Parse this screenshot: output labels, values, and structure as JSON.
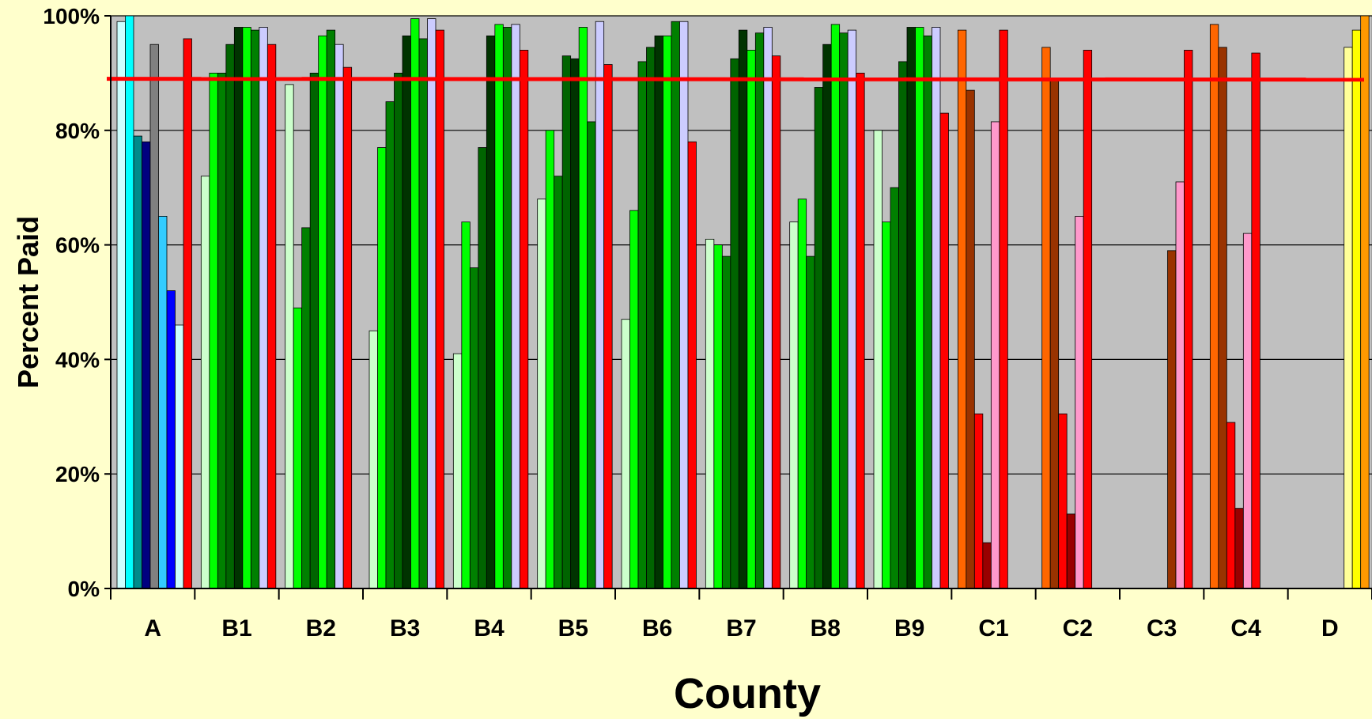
{
  "chart_data": {
    "type": "bar",
    "xlabel": "County",
    "ylabel": "Percent Paid",
    "ylim": [
      0,
      100
    ],
    "yticks": [
      "0%",
      "20%",
      "40%",
      "60%",
      "80%",
      "100%"
    ],
    "ytick_values": [
      0,
      20,
      40,
      60,
      80,
      100
    ],
    "grid": true,
    "plot_background": "#c0c0c0",
    "page_background": "#ffffcc",
    "reference_line": {
      "value": 89,
      "color": "#ff0000"
    },
    "categories": [
      "A",
      "B1",
      "B2",
      "B3",
      "B4",
      "B5",
      "B6",
      "B7",
      "B8",
      "B9",
      "C1",
      "C2",
      "C3",
      "C4",
      "D"
    ],
    "groups": [
      {
        "category": "A",
        "bars": [
          {
            "value": 99,
            "color": "#ccffff"
          },
          {
            "value": 100,
            "color": "#00ffff"
          },
          {
            "value": 79,
            "color": "#008b8b"
          },
          {
            "value": 78,
            "color": "#000080"
          },
          {
            "value": 95,
            "color": "#808080"
          },
          {
            "value": 65,
            "color": "#33ccff"
          },
          {
            "value": 52,
            "color": "#0000ff"
          },
          {
            "value": 46,
            "color": "#ccffff"
          },
          {
            "value": 96,
            "color": "#ff0000"
          }
        ]
      },
      {
        "category": "B1",
        "bars": [
          {
            "value": 72,
            "color": "#ccffcc"
          },
          {
            "value": 90,
            "color": "#00ff00"
          },
          {
            "value": 90,
            "color": "#008000"
          },
          {
            "value": 95,
            "color": "#006400"
          },
          {
            "value": 98,
            "color": "#003300"
          },
          {
            "value": 98,
            "color": "#00ff00"
          },
          {
            "value": 97.5,
            "color": "#008000"
          },
          {
            "value": 98,
            "color": "#ccccff"
          },
          {
            "value": 95,
            "color": "#ff0000"
          }
        ]
      },
      {
        "category": "B2",
        "bars": [
          {
            "value": 88,
            "color": "#ccffcc"
          },
          {
            "value": 49,
            "color": "#00ff00"
          },
          {
            "value": 63,
            "color": "#008000"
          },
          {
            "value": 90,
            "color": "#006400"
          },
          {
            "value": 96.5,
            "color": "#00ff00"
          },
          {
            "value": 97.5,
            "color": "#008000"
          },
          {
            "value": 95,
            "color": "#ccccff"
          },
          {
            "value": 91,
            "color": "#ff0000"
          }
        ]
      },
      {
        "category": "B3",
        "bars": [
          {
            "value": 45,
            "color": "#ccffcc"
          },
          {
            "value": 77,
            "color": "#00ff00"
          },
          {
            "value": 85,
            "color": "#008000"
          },
          {
            "value": 90,
            "color": "#006400"
          },
          {
            "value": 96.5,
            "color": "#003300"
          },
          {
            "value": 99.5,
            "color": "#00ff00"
          },
          {
            "value": 96,
            "color": "#008000"
          },
          {
            "value": 99.5,
            "color": "#ccccff"
          },
          {
            "value": 97.5,
            "color": "#ff0000"
          }
        ]
      },
      {
        "category": "B4",
        "bars": [
          {
            "value": 41,
            "color": "#ccffcc"
          },
          {
            "value": 64,
            "color": "#00ff00"
          },
          {
            "value": 56,
            "color": "#008000"
          },
          {
            "value": 77,
            "color": "#006400"
          },
          {
            "value": 96.5,
            "color": "#003300"
          },
          {
            "value": 98.5,
            "color": "#00ff00"
          },
          {
            "value": 98,
            "color": "#008000"
          },
          {
            "value": 98.5,
            "color": "#ccccff"
          },
          {
            "value": 94,
            "color": "#ff0000"
          }
        ]
      },
      {
        "category": "B5",
        "bars": [
          {
            "value": 68,
            "color": "#ccffcc"
          },
          {
            "value": 80,
            "color": "#00ff00"
          },
          {
            "value": 72,
            "color": "#008000"
          },
          {
            "value": 93,
            "color": "#006400"
          },
          {
            "value": 92.5,
            "color": "#003300"
          },
          {
            "value": 98,
            "color": "#00ff00"
          },
          {
            "value": 81.5,
            "color": "#008000"
          },
          {
            "value": 99,
            "color": "#ccccff"
          },
          {
            "value": 91.5,
            "color": "#ff0000"
          }
        ]
      },
      {
        "category": "B6",
        "bars": [
          {
            "value": 47,
            "color": "#ccffcc"
          },
          {
            "value": 66,
            "color": "#00ff00"
          },
          {
            "value": 92,
            "color": "#008000"
          },
          {
            "value": 94.5,
            "color": "#006400"
          },
          {
            "value": 96.5,
            "color": "#003300"
          },
          {
            "value": 96.5,
            "color": "#00ff00"
          },
          {
            "value": 99,
            "color": "#008000"
          },
          {
            "value": 99,
            "color": "#ccccff"
          },
          {
            "value": 78,
            "color": "#ff0000"
          }
        ]
      },
      {
        "category": "B7",
        "bars": [
          {
            "value": 61,
            "color": "#ccffcc"
          },
          {
            "value": 60,
            "color": "#00ff00"
          },
          {
            "value": 58,
            "color": "#008000"
          },
          {
            "value": 92.5,
            "color": "#006400"
          },
          {
            "value": 97.5,
            "color": "#003300"
          },
          {
            "value": 94,
            "color": "#00ff00"
          },
          {
            "value": 97,
            "color": "#008000"
          },
          {
            "value": 98,
            "color": "#ccccff"
          },
          {
            "value": 93,
            "color": "#ff0000"
          }
        ]
      },
      {
        "category": "B8",
        "bars": [
          {
            "value": 64,
            "color": "#ccffcc"
          },
          {
            "value": 68,
            "color": "#00ff00"
          },
          {
            "value": 58,
            "color": "#008000"
          },
          {
            "value": 87.5,
            "color": "#006400"
          },
          {
            "value": 95,
            "color": "#003300"
          },
          {
            "value": 98.5,
            "color": "#00ff00"
          },
          {
            "value": 97,
            "color": "#008000"
          },
          {
            "value": 97.5,
            "color": "#ccccff"
          },
          {
            "value": 90,
            "color": "#ff0000"
          }
        ]
      },
      {
        "category": "B9",
        "bars": [
          {
            "value": 80,
            "color": "#ccffcc"
          },
          {
            "value": 64,
            "color": "#00ff00"
          },
          {
            "value": 70,
            "color": "#008000"
          },
          {
            "value": 92,
            "color": "#006400"
          },
          {
            "value": 98,
            "color": "#003300"
          },
          {
            "value": 98,
            "color": "#00ff00"
          },
          {
            "value": 96.5,
            "color": "#008000"
          },
          {
            "value": 98,
            "color": "#ccccff"
          },
          {
            "value": 83,
            "color": "#ff0000"
          }
        ]
      },
      {
        "category": "C1",
        "bars": [
          {
            "value": 97.5,
            "color": "#ff6600"
          },
          {
            "value": 87,
            "color": "#993300"
          },
          {
            "value": 30.5,
            "color": "#ff0000"
          },
          {
            "value": 8,
            "color": "#990000"
          },
          {
            "value": 81.5,
            "color": "#ff99cc"
          },
          {
            "value": 97.5,
            "color": "#ff0000"
          }
        ]
      },
      {
        "category": "C2",
        "bars": [
          {
            "value": 94.5,
            "color": "#ff6600"
          },
          {
            "value": 89,
            "color": "#993300"
          },
          {
            "value": 30.5,
            "color": "#ff0000"
          },
          {
            "value": 13,
            "color": "#990000"
          },
          {
            "value": 65,
            "color": "#ff99cc"
          },
          {
            "value": 94,
            "color": "#ff0000"
          }
        ]
      },
      {
        "category": "C3",
        "bars": [
          {
            "value": 59,
            "color": "#993300"
          },
          {
            "value": 71,
            "color": "#ff99cc"
          },
          {
            "value": 94,
            "color": "#ff0000"
          }
        ]
      },
      {
        "category": "C4",
        "bars": [
          {
            "value": 98.5,
            "color": "#ff6600"
          },
          {
            "value": 94.5,
            "color": "#993300"
          },
          {
            "value": 29,
            "color": "#ff0000"
          },
          {
            "value": 14,
            "color": "#990000"
          },
          {
            "value": 62,
            "color": "#ff99cc"
          },
          {
            "value": 93.5,
            "color": "#ff0000"
          }
        ]
      },
      {
        "category": "D",
        "bars": [
          {
            "value": 94.5,
            "color": "#ffff99"
          },
          {
            "value": 97.5,
            "color": "#ffff00"
          },
          {
            "value": 100,
            "color": "#ff9900"
          }
        ]
      }
    ]
  }
}
